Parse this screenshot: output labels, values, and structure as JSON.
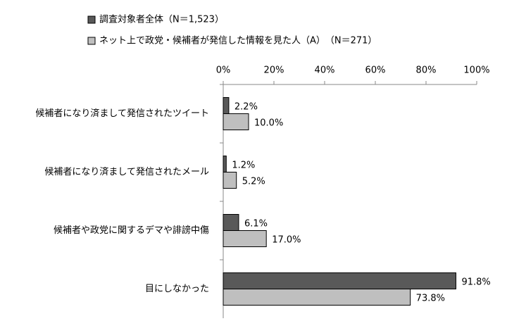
{
  "chart_data": {
    "type": "bar",
    "orientation": "horizontal",
    "categories": [
      "候補者になり済まして発信されたツイート",
      "候補者になり済まして発信されたメール",
      "候補者や政党に関するデマや誹謗中傷",
      "目にしなかった"
    ],
    "series": [
      {
        "name": "調査対象者全体（N＝1,523）",
        "color": "#595959",
        "values": [
          2.2,
          1.2,
          6.1,
          91.8
        ],
        "value_labels": [
          "2.2%",
          "1.2%",
          "6.1%",
          "91.8%"
        ]
      },
      {
        "name": "ネット上で政党・候補者が発信した情報を見た人（A）　（N＝271）",
        "color": "#bfbfbf",
        "values": [
          10.0,
          5.2,
          17.0,
          73.8
        ],
        "value_labels": [
          "10.0%",
          "5.2%",
          "17.0%",
          "73.8%"
        ]
      }
    ],
    "xlim": [
      0,
      100
    ],
    "xticks": [
      {
        "value": 0,
        "label": "0%"
      },
      {
        "value": 20,
        "label": "20%"
      },
      {
        "value": 40,
        "label": "40%"
      },
      {
        "value": 60,
        "label": "60%"
      },
      {
        "value": 80,
        "label": "80%"
      },
      {
        "value": 100,
        "label": "100%"
      }
    ],
    "legend": "top-left"
  }
}
